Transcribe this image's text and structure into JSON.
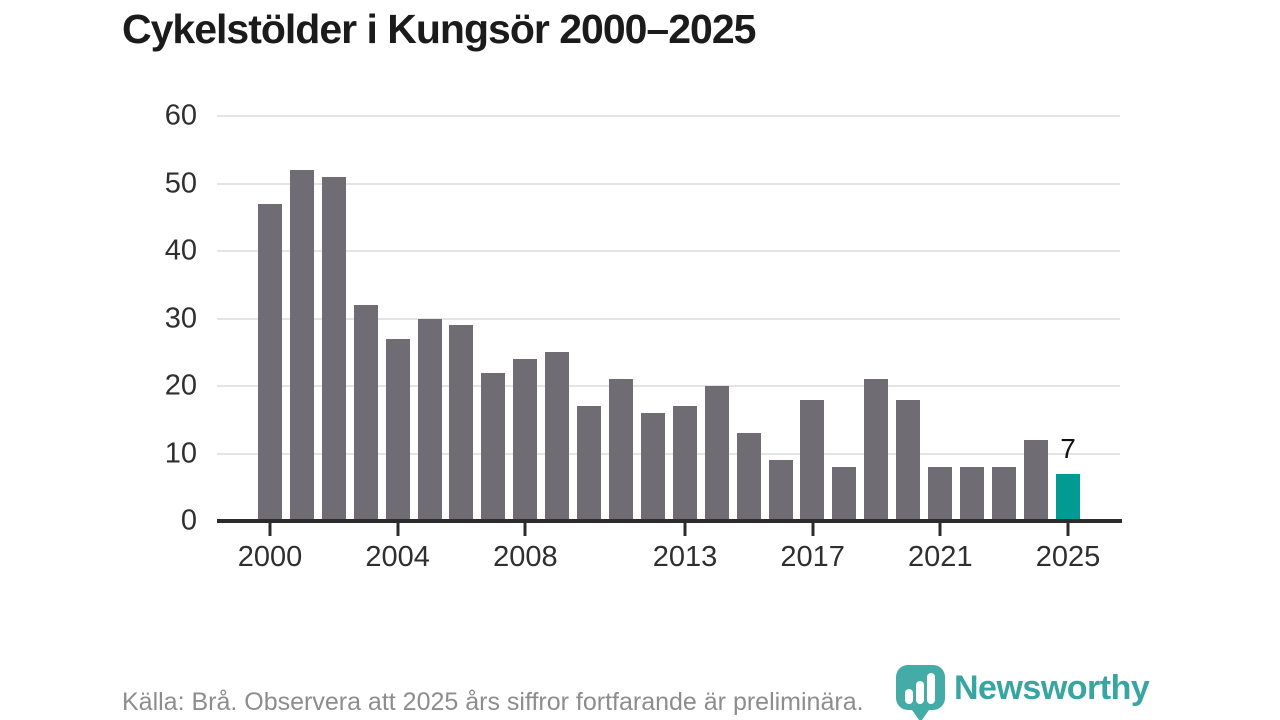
{
  "header": {
    "title": "Cykelstölder i Kungsör 2000–2025"
  },
  "footer": {
    "source_text": "Källa: Brå. Observera att 2025 års siffror fortfarande är preliminära.",
    "logo_text": "Newsworthy"
  },
  "colors": {
    "bar_default": "#6f6c73",
    "bar_highlight": "#009c94",
    "logo_teal": "#38a5a1",
    "gridline": "#e4e4e4",
    "axis": "#2c2c2c",
    "axis_label": "#2f2f2f",
    "annotation": "#111111",
    "source_gray": "#8d8d8d"
  },
  "chart_data": {
    "type": "bar",
    "title": "Cykelstölder i Kungsör 2000–2025",
    "categories": [
      2000,
      2001,
      2002,
      2003,
      2004,
      2005,
      2006,
      2007,
      2008,
      2009,
      2010,
      2011,
      2012,
      2013,
      2014,
      2015,
      2016,
      2017,
      2018,
      2019,
      2020,
      2021,
      2022,
      2023,
      2024,
      2025
    ],
    "values": [
      47,
      52,
      51,
      32,
      27,
      30,
      29,
      22,
      24,
      25,
      17,
      21,
      16,
      17,
      20,
      13,
      9,
      18,
      8,
      21,
      18,
      8,
      8,
      8,
      12,
      7
    ],
    "xlabel": "",
    "ylabel": "",
    "ylim": [
      0,
      60
    ],
    "yticks": [
      0,
      10,
      20,
      30,
      40,
      50,
      60
    ],
    "xtick_years": [
      2000,
      2004,
      2008,
      2013,
      2017,
      2021,
      2025
    ],
    "grid": true,
    "legend": false,
    "highlight_index": 25,
    "annotations": [
      {
        "index": 25,
        "label": "7"
      }
    ]
  }
}
